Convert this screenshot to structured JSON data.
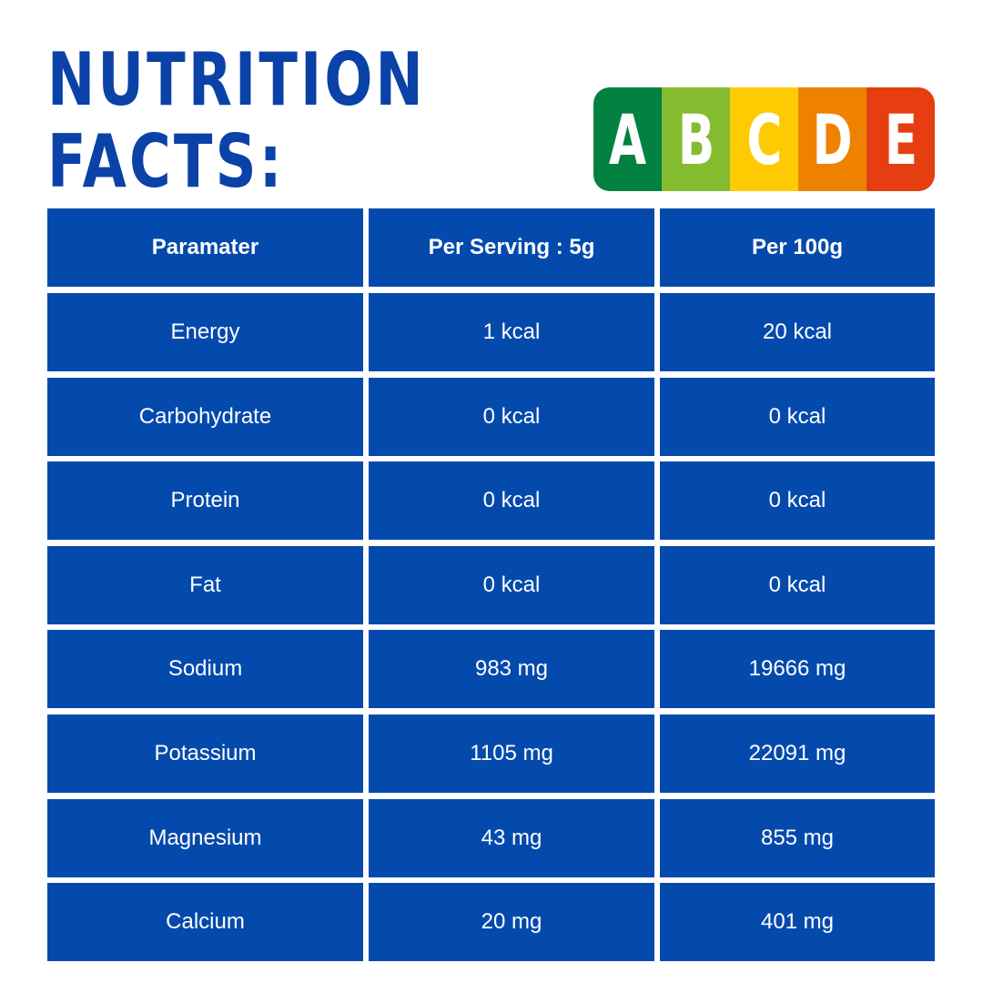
{
  "header": {
    "title_lines": [
      "NUTRITION",
      "FACTS:"
    ]
  },
  "nutri_score": {
    "letters": [
      "A",
      "B",
      "C",
      "D",
      "E"
    ],
    "colors": [
      "#038141",
      "#85bb2f",
      "#fecb02",
      "#ee8100",
      "#e63e11"
    ]
  },
  "table": {
    "header": [
      "Paramater",
      "Per Serving : 5g",
      "Per 100g"
    ],
    "rows": [
      [
        "Energy",
        "1 kcal",
        "20 kcal"
      ],
      [
        "Carbohydrate",
        "0 kcal",
        "0 kcal"
      ],
      [
        "Protein",
        "0 kcal",
        "0 kcal"
      ],
      [
        "Fat",
        "0 kcal",
        "0 kcal"
      ],
      [
        "Sodium",
        "983 mg",
        "19666 mg"
      ],
      [
        "Potassium",
        "1105 mg",
        "22091 mg"
      ],
      [
        "Magnesium",
        "43 mg",
        "855 mg"
      ],
      [
        "Calcium",
        "20 mg",
        "401 mg"
      ]
    ]
  }
}
